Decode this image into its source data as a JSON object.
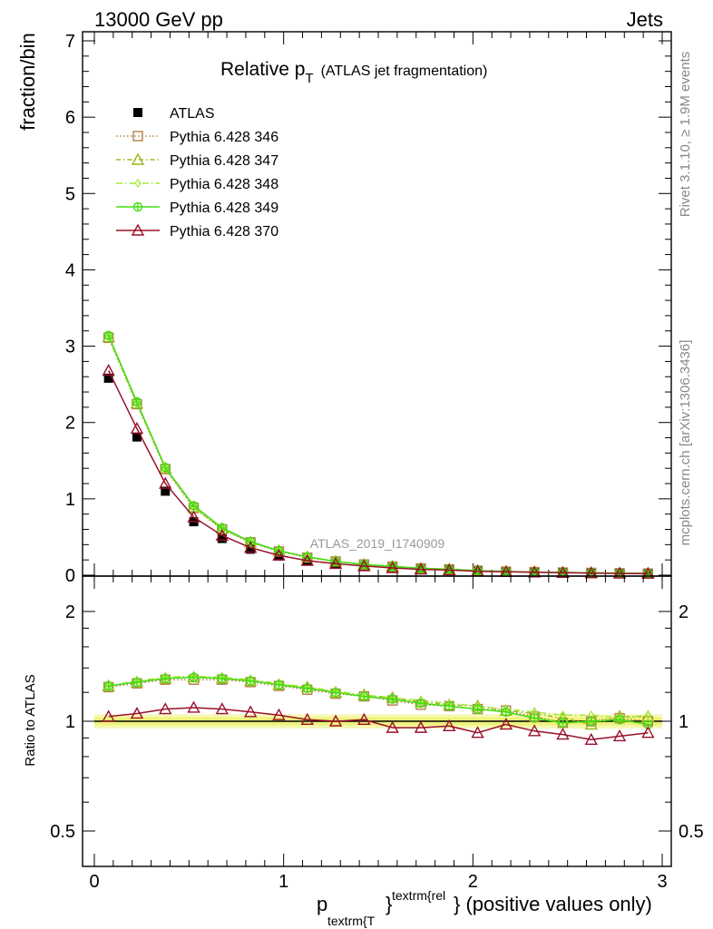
{
  "header": {
    "left": "13000 GeV pp",
    "right": "Jets"
  },
  "title": {
    "main": "Relative p",
    "sub": "T",
    "note": "(ATLAS jet fragmentation)"
  },
  "side_labels": {
    "rivet": "Rivet 3.1.10, ≥ 1.9M events",
    "mcplots": "mcplots.cern.ch [arXiv:1306.3436]"
  },
  "watermark": "ATLAS_2019_I1740909",
  "xaxis": {
    "label_p": "p",
    "label_sub": "textrm{T",
    "label_brace": "}",
    "label_sup": "textrm{rel",
    "label_tail": "} (positive values only)"
  },
  "legend": [
    {
      "label": "ATLAS",
      "color": "#000000",
      "marker": "filled-square",
      "dash": ""
    },
    {
      "label": "Pythia 6.428 346",
      "color": "#b5804a",
      "marker": "open-square",
      "dash": "1.5,2.5"
    },
    {
      "label": "Pythia 6.428 347",
      "color": "#9aba1e",
      "marker": "open-triangle",
      "dash": "5,3,1.5,3"
    },
    {
      "label": "Pythia 6.428 348",
      "color": "#a6e83a",
      "marker": "open-diamond",
      "dash": "7,3,1.5,3"
    },
    {
      "label": "Pythia 6.428 349",
      "color": "#44dd11",
      "marker": "open-circle-cross",
      "dash": ""
    },
    {
      "label": "Pythia 6.428 370",
      "color": "#99102a",
      "marker": "open-triangle",
      "dash": ""
    }
  ],
  "chart_data": [
    {
      "type": "line",
      "title": "Relative pT (ATLAS jet fragmentation)",
      "xlabel": "p_textrm{T}^textrm{rel} (positive values only)",
      "ylabel": "fraction/bin",
      "xlim": [
        0,
        3
      ],
      "ylim": [
        0,
        7.1
      ],
      "x_ticks": [
        0,
        1,
        2,
        3
      ],
      "y_ticks": [
        0,
        1,
        2,
        3,
        4,
        5,
        6,
        7
      ],
      "legend_position": "top-left",
      "x": [
        0.075,
        0.225,
        0.375,
        0.525,
        0.675,
        0.825,
        0.975,
        1.125,
        1.275,
        1.425,
        1.575,
        1.725,
        1.875,
        2.025,
        2.175,
        2.325,
        2.475,
        2.625,
        2.775,
        2.925
      ],
      "series": [
        {
          "name": "ATLAS",
          "values": [
            2.58,
            1.81,
            1.1,
            0.7,
            0.48,
            0.34,
            0.25,
            0.19,
            0.15,
            0.12,
            0.1,
            0.08,
            0.07,
            0.055,
            0.045,
            0.04,
            0.035,
            0.03,
            0.025,
            0.022
          ]
        },
        {
          "name": "Pythia 6.428 346",
          "values": [
            3.11,
            2.24,
            1.39,
            0.88,
            0.6,
            0.43,
            0.31,
            0.23,
            0.18,
            0.14,
            0.113,
            0.089,
            0.076,
            0.059,
            0.047,
            0.041,
            0.035,
            0.031,
            0.026,
            0.022
          ]
        },
        {
          "name": "Pythia 6.428 347",
          "values": [
            3.12,
            2.25,
            1.4,
            0.89,
            0.61,
            0.43,
            0.32,
            0.24,
            0.18,
            0.14,
            0.115,
            0.09,
            0.077,
            0.06,
            0.047,
            0.041,
            0.036,
            0.031,
            0.026,
            0.023
          ]
        },
        {
          "name": "Pythia 6.428 348",
          "values": [
            3.13,
            2.26,
            1.41,
            0.9,
            0.61,
            0.44,
            0.32,
            0.24,
            0.18,
            0.14,
            0.116,
            0.09,
            0.077,
            0.06,
            0.047,
            0.042,
            0.036,
            0.032,
            0.026,
            0.023
          ]
        },
        {
          "name": "Pythia 6.428 349",
          "values": [
            3.14,
            2.27,
            1.41,
            0.91,
            0.62,
            0.44,
            0.32,
            0.24,
            0.18,
            0.14,
            0.115,
            0.09,
            0.077,
            0.059,
            0.047,
            0.041,
            0.035,
            0.031,
            0.026,
            0.022
          ]
        },
        {
          "name": "Pythia 6.428 370",
          "values": [
            2.68,
            1.92,
            1.2,
            0.76,
            0.52,
            0.36,
            0.26,
            0.19,
            0.15,
            0.12,
            0.095,
            0.076,
            0.066,
            0.051,
            0.044,
            0.038,
            0.032,
            0.027,
            0.023,
            0.021
          ]
        }
      ]
    },
    {
      "type": "line",
      "title": "",
      "xlabel": "p_textrm{T}^textrm{rel} (positive values only)",
      "ylabel": "Ratio to ATLAS",
      "xlim": [
        0,
        3
      ],
      "ylim": [
        0.35,
        2.3
      ],
      "y_scale": "log",
      "x_ticks": [
        0,
        1,
        2,
        3
      ],
      "y_ticks": [
        0.5,
        1,
        2
      ],
      "band": {
        "center": 1.0,
        "half_width_inner": 0.025,
        "half_width_outer": 0.045
      },
      "x": [
        0.075,
        0.225,
        0.375,
        0.525,
        0.675,
        0.825,
        0.975,
        1.125,
        1.275,
        1.425,
        1.575,
        1.725,
        1.875,
        2.025,
        2.175,
        2.325,
        2.475,
        2.625,
        2.775,
        2.925
      ],
      "series": [
        {
          "name": "Pythia 6.428 346",
          "values": [
            1.24,
            1.27,
            1.3,
            1.3,
            1.3,
            1.28,
            1.25,
            1.22,
            1.19,
            1.17,
            1.14,
            1.11,
            1.1,
            1.08,
            1.07,
            1.03,
            0.99,
            1.0,
            1.02,
            1.0
          ]
        },
        {
          "name": "Pythia 6.428 347",
          "values": [
            1.25,
            1.28,
            1.31,
            1.32,
            1.31,
            1.29,
            1.26,
            1.24,
            1.2,
            1.18,
            1.16,
            1.13,
            1.11,
            1.1,
            1.07,
            1.05,
            1.02,
            0.98,
            1.03,
            1.03
          ]
        },
        {
          "name": "Pythia 6.428 348",
          "values": [
            1.25,
            1.29,
            1.32,
            1.33,
            1.32,
            1.3,
            1.27,
            1.24,
            1.21,
            1.18,
            1.16,
            1.14,
            1.12,
            1.1,
            1.08,
            1.06,
            1.04,
            1.04,
            1.02,
            1.04
          ]
        },
        {
          "name": "Pythia 6.428 349",
          "values": [
            1.25,
            1.28,
            1.31,
            1.32,
            1.31,
            1.29,
            1.26,
            1.23,
            1.2,
            1.17,
            1.15,
            1.12,
            1.1,
            1.08,
            1.06,
            1.02,
            0.99,
            1.0,
            1.01,
            0.98
          ]
        },
        {
          "name": "Pythia 6.428 370",
          "values": [
            1.03,
            1.05,
            1.08,
            1.09,
            1.08,
            1.06,
            1.04,
            1.01,
            1.0,
            1.01,
            0.96,
            0.96,
            0.97,
            0.93,
            0.98,
            0.94,
            0.92,
            0.89,
            0.91,
            0.93
          ]
        }
      ]
    }
  ]
}
